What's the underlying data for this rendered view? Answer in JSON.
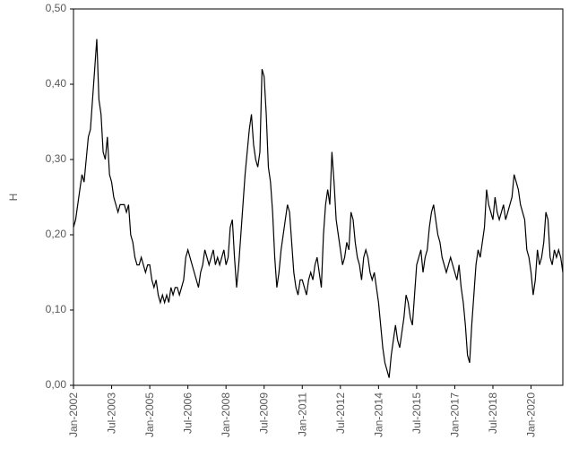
{
  "chart_data": {
    "type": "line",
    "ylabel": "H",
    "x": [
      "Jan-2002",
      "Feb-2002",
      "Mar-2002",
      "Apr-2002",
      "May-2002",
      "Jun-2002",
      "Jul-2002",
      "Aug-2002",
      "Sep-2002",
      "Oct-2002",
      "Nov-2002",
      "Dec-2002",
      "Jan-2003",
      "Feb-2003",
      "Mar-2003",
      "Apr-2003",
      "May-2003",
      "Jun-2003",
      "Jul-2003",
      "Aug-2003",
      "Sep-2003",
      "Oct-2003",
      "Nov-2003",
      "Dec-2003",
      "Jan-2004",
      "Feb-2004",
      "Mar-2004",
      "Apr-2004",
      "May-2004",
      "Jun-2004",
      "Jul-2004",
      "Aug-2004",
      "Sep-2004",
      "Oct-2004",
      "Nov-2004",
      "Dec-2004",
      "Jan-2005",
      "Feb-2005",
      "Mar-2005",
      "Apr-2005",
      "May-2005",
      "Jun-2005",
      "Jul-2005",
      "Aug-2005",
      "Sep-2005",
      "Oct-2005",
      "Nov-2005",
      "Dec-2005",
      "Jan-2006",
      "Feb-2006",
      "Mar-2006",
      "Apr-2006",
      "May-2006",
      "Jun-2006",
      "Jul-2006",
      "Aug-2006",
      "Sep-2006",
      "Oct-2006",
      "Nov-2006",
      "Dec-2006",
      "Jan-2007",
      "Feb-2007",
      "Mar-2007",
      "Apr-2007",
      "May-2007",
      "Jun-2007",
      "Jul-2007",
      "Aug-2007",
      "Sep-2007",
      "Oct-2007",
      "Nov-2007",
      "Dec-2007",
      "Jan-2008",
      "Feb-2008",
      "Mar-2008",
      "Apr-2008",
      "May-2008",
      "Jun-2008",
      "Jul-2008",
      "Aug-2008",
      "Sep-2008",
      "Oct-2008",
      "Nov-2008",
      "Dec-2008",
      "Jan-2009",
      "Feb-2009",
      "Mar-2009",
      "Apr-2009",
      "May-2009",
      "Jun-2009",
      "Jul-2009",
      "Aug-2009",
      "Sep-2009",
      "Oct-2009",
      "Nov-2009",
      "Dec-2009",
      "Jan-2010",
      "Feb-2010",
      "Mar-2010",
      "Apr-2010",
      "May-2010",
      "Jun-2010",
      "Jul-2010",
      "Aug-2010",
      "Sep-2010",
      "Oct-2010",
      "Nov-2010",
      "Dec-2010",
      "Jan-2011",
      "Feb-2011",
      "Mar-2011",
      "Apr-2011",
      "May-2011",
      "Jun-2011",
      "Jul-2011",
      "Aug-2011",
      "Sep-2011",
      "Oct-2011",
      "Nov-2011",
      "Dec-2011",
      "Jan-2012",
      "Feb-2012",
      "Mar-2012",
      "Apr-2012",
      "May-2012",
      "Jun-2012",
      "Jul-2012",
      "Aug-2012",
      "Sep-2012",
      "Oct-2012",
      "Nov-2012",
      "Dec-2012",
      "Jan-2013",
      "Feb-2013",
      "Mar-2013",
      "Apr-2013",
      "May-2013",
      "Jun-2013",
      "Jul-2013",
      "Aug-2013",
      "Sep-2013",
      "Oct-2013",
      "Nov-2013",
      "Dec-2013",
      "Jan-2014",
      "Feb-2014",
      "Mar-2014",
      "Apr-2014",
      "May-2014",
      "Jun-2014",
      "Jul-2014",
      "Aug-2014",
      "Sep-2014",
      "Oct-2014",
      "Nov-2014",
      "Dec-2014",
      "Jan-2015",
      "Feb-2015",
      "Mar-2015",
      "Apr-2015",
      "May-2015",
      "Jun-2015",
      "Jul-2015",
      "Aug-2015",
      "Sep-2015",
      "Oct-2015",
      "Nov-2015",
      "Dec-2015",
      "Jan-2016",
      "Feb-2016",
      "Mar-2016",
      "Apr-2016",
      "May-2016",
      "Jun-2016",
      "Jul-2016",
      "Aug-2016",
      "Sep-2016",
      "Oct-2016",
      "Nov-2016",
      "Dec-2016",
      "Jan-2017",
      "Feb-2017",
      "Mar-2017",
      "Apr-2017",
      "May-2017",
      "Jun-2017",
      "Jul-2017",
      "Aug-2017",
      "Sep-2017",
      "Oct-2017",
      "Nov-2017",
      "Dec-2017",
      "Jan-2018",
      "Feb-2018",
      "Mar-2018",
      "Apr-2018",
      "May-2018",
      "Jun-2018",
      "Jul-2018",
      "Aug-2018",
      "Sep-2018",
      "Oct-2018",
      "Nov-2018",
      "Dec-2018",
      "Jan-2019",
      "Feb-2019",
      "Mar-2019",
      "Apr-2019",
      "May-2019",
      "Jun-2019",
      "Jul-2019",
      "Aug-2019",
      "Sep-2019",
      "Oct-2019",
      "Nov-2019",
      "Dec-2019",
      "Jan-2020",
      "Feb-2020",
      "Mar-2020",
      "Apr-2020",
      "May-2020",
      "Jun-2020",
      "Jul-2020",
      "Aug-2020",
      "Sep-2020",
      "Oct-2020",
      "Nov-2020",
      "Dec-2020",
      "Jan-2021",
      "Feb-2021",
      "Mar-2021",
      "Apr-2021"
    ],
    "values": [
      0.21,
      0.22,
      0.24,
      0.26,
      0.28,
      0.27,
      0.3,
      0.33,
      0.34,
      0.38,
      0.42,
      0.46,
      0.38,
      0.36,
      0.31,
      0.3,
      0.33,
      0.28,
      0.27,
      0.25,
      0.24,
      0.23,
      0.24,
      0.24,
      0.24,
      0.23,
      0.24,
      0.2,
      0.19,
      0.17,
      0.16,
      0.16,
      0.17,
      0.16,
      0.15,
      0.16,
      0.16,
      0.14,
      0.13,
      0.14,
      0.12,
      0.11,
      0.12,
      0.11,
      0.12,
      0.11,
      0.13,
      0.12,
      0.13,
      0.13,
      0.12,
      0.13,
      0.14,
      0.17,
      0.18,
      0.17,
      0.16,
      0.15,
      0.14,
      0.13,
      0.15,
      0.16,
      0.18,
      0.17,
      0.16,
      0.17,
      0.18,
      0.16,
      0.17,
      0.16,
      0.17,
      0.18,
      0.16,
      0.17,
      0.21,
      0.22,
      0.17,
      0.13,
      0.16,
      0.2,
      0.24,
      0.28,
      0.31,
      0.34,
      0.36,
      0.32,
      0.3,
      0.29,
      0.31,
      0.42,
      0.41,
      0.36,
      0.29,
      0.27,
      0.23,
      0.17,
      0.13,
      0.15,
      0.18,
      0.2,
      0.22,
      0.24,
      0.23,
      0.19,
      0.15,
      0.13,
      0.12,
      0.14,
      0.14,
      0.13,
      0.12,
      0.14,
      0.15,
      0.14,
      0.16,
      0.17,
      0.15,
      0.13,
      0.2,
      0.24,
      0.26,
      0.24,
      0.31,
      0.27,
      0.22,
      0.2,
      0.18,
      0.16,
      0.17,
      0.19,
      0.18,
      0.23,
      0.22,
      0.19,
      0.17,
      0.16,
      0.14,
      0.17,
      0.18,
      0.17,
      0.15,
      0.14,
      0.15,
      0.13,
      0.11,
      0.08,
      0.05,
      0.03,
      0.02,
      0.01,
      0.04,
      0.06,
      0.08,
      0.06,
      0.05,
      0.07,
      0.09,
      0.12,
      0.11,
      0.09,
      0.08,
      0.12,
      0.16,
      0.17,
      0.18,
      0.15,
      0.17,
      0.18,
      0.21,
      0.23,
      0.24,
      0.22,
      0.2,
      0.19,
      0.17,
      0.16,
      0.15,
      0.16,
      0.17,
      0.16,
      0.15,
      0.14,
      0.16,
      0.13,
      0.11,
      0.08,
      0.04,
      0.03,
      0.08,
      0.12,
      0.16,
      0.18,
      0.17,
      0.19,
      0.21,
      0.26,
      0.24,
      0.23,
      0.22,
      0.25,
      0.23,
      0.22,
      0.23,
      0.24,
      0.22,
      0.23,
      0.24,
      0.25,
      0.28,
      0.27,
      0.26,
      0.24,
      0.23,
      0.22,
      0.18,
      0.17,
      0.15,
      0.12,
      0.14,
      0.18,
      0.16,
      0.17,
      0.19,
      0.23,
      0.22,
      0.17,
      0.16,
      0.18,
      0.17,
      0.18,
      0.17,
      0.15
    ],
    "color": "#000000",
    "ylim": [
      0,
      0.5
    ],
    "yticks": [
      {
        "value": 0,
        "label": "0,00"
      },
      {
        "value": 0.1,
        "label": "0,10"
      },
      {
        "value": 0.2,
        "label": "0,20"
      },
      {
        "value": 0.3,
        "label": "0,30"
      },
      {
        "value": 0.4,
        "label": "0,40"
      },
      {
        "value": 0.5,
        "label": "0,50"
      }
    ],
    "xticks": [
      "Jan-2002",
      "Jul-2003",
      "Jan-2005",
      "Jul-2006",
      "Jan-2008",
      "Jul-2009",
      "Jan-2011",
      "Jul-2012",
      "Jan-2014",
      "Jul-2015",
      "Jan-2017",
      "Jul-2018",
      "Jan-2020"
    ]
  }
}
